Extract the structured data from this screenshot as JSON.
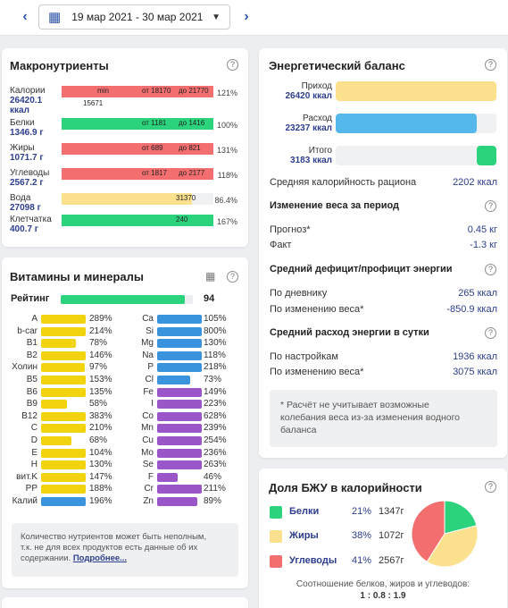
{
  "toolbar": {
    "date_range": "19 мар 2021 - 30 мар 2021"
  },
  "macro": {
    "title": "Макронутриенты",
    "rows": [
      {
        "name": "Калории",
        "value": "26420.1 ккал",
        "pct": "121%",
        "fill": 1.0,
        "color": "#f36f6f",
        "min_label": "min",
        "range_from": "от 18170",
        "range_to": "до 21770",
        "extra": "15671"
      },
      {
        "name": "Белки",
        "value": "1346.9 г",
        "pct": "100%",
        "fill": 1.0,
        "color": "#2bd47c",
        "range_from": "от 1181",
        "range_to": "до 1416"
      },
      {
        "name": "Жиры",
        "value": "1071.7 г",
        "pct": "131%",
        "fill": 1.0,
        "color": "#f36f6f",
        "range_from": "от 689",
        "range_to": "до 821"
      },
      {
        "name": "Углеводы",
        "value": "2567.2 г",
        "pct": "118%",
        "fill": 1.0,
        "color": "#f36f6f",
        "range_from": "от 1817",
        "range_to": "до 2177"
      },
      {
        "name": "Вода",
        "value": "27098 г",
        "pct": "86.4%",
        "fill": 0.86,
        "color": "#fbe08e",
        "range_to": "31370"
      },
      {
        "name": "Клетчатка",
        "value": "400.7 г",
        "pct": "167%",
        "fill": 1.0,
        "color": "#2bd47c",
        "range_to": "240"
      }
    ]
  },
  "vitamins": {
    "title": "Витамины и минералы",
    "rating_label": "Рейтинг",
    "rating_value": "94",
    "rating_fill": 0.94,
    "colors": {
      "yellow": "#f2d30f",
      "blue": "#3a93dd",
      "purple": "#9a55c9",
      "green": "#2bd47c"
    },
    "left": [
      {
        "name": "A",
        "pct": "289%",
        "fill": 1.0,
        "color": "yellow"
      },
      {
        "name": "b-car",
        "pct": "214%",
        "fill": 1.0,
        "color": "yellow"
      },
      {
        "name": "B1",
        "pct": "78%",
        "fill": 0.78,
        "color": "yellow"
      },
      {
        "name": "B2",
        "pct": "146%",
        "fill": 1.0,
        "color": "yellow"
      },
      {
        "name": "Холин",
        "pct": "97%",
        "fill": 0.97,
        "color": "yellow"
      },
      {
        "name": "B5",
        "pct": "153%",
        "fill": 1.0,
        "color": "yellow"
      },
      {
        "name": "B6",
        "pct": "135%",
        "fill": 1.0,
        "color": "yellow"
      },
      {
        "name": "B9",
        "pct": "58%",
        "fill": 0.58,
        "color": "yellow"
      },
      {
        "name": "B12",
        "pct": "383%",
        "fill": 1.0,
        "color": "yellow"
      },
      {
        "name": "C",
        "pct": "210%",
        "fill": 1.0,
        "color": "yellow"
      },
      {
        "name": "D",
        "pct": "68%",
        "fill": 0.68,
        "color": "yellow"
      },
      {
        "name": "E",
        "pct": "104%",
        "fill": 1.0,
        "color": "yellow"
      },
      {
        "name": "H",
        "pct": "130%",
        "fill": 1.0,
        "color": "yellow"
      },
      {
        "name": "вит.K",
        "pct": "147%",
        "fill": 1.0,
        "color": "yellow"
      },
      {
        "name": "PP",
        "pct": "188%",
        "fill": 1.0,
        "color": "yellow"
      },
      {
        "name": "Калий",
        "pct": "196%",
        "fill": 1.0,
        "color": "blue"
      }
    ],
    "right": [
      {
        "name": "Ca",
        "pct": "105%",
        "fill": 1.0,
        "color": "blue"
      },
      {
        "name": "Si",
        "pct": "800%",
        "fill": 1.0,
        "color": "blue"
      },
      {
        "name": "Mg",
        "pct": "130%",
        "fill": 1.0,
        "color": "blue"
      },
      {
        "name": "Na",
        "pct": "118%",
        "fill": 1.0,
        "color": "blue"
      },
      {
        "name": "P",
        "pct": "218%",
        "fill": 1.0,
        "color": "blue"
      },
      {
        "name": "Cl",
        "pct": "73%",
        "fill": 0.73,
        "color": "blue"
      },
      {
        "name": "Fe",
        "pct": "149%",
        "fill": 1.0,
        "color": "purple"
      },
      {
        "name": "I",
        "pct": "223%",
        "fill": 1.0,
        "color": "purple"
      },
      {
        "name": "Co",
        "pct": "628%",
        "fill": 1.0,
        "color": "purple"
      },
      {
        "name": "Mn",
        "pct": "239%",
        "fill": 1.0,
        "color": "purple"
      },
      {
        "name": "Cu",
        "pct": "254%",
        "fill": 1.0,
        "color": "purple"
      },
      {
        "name": "Mo",
        "pct": "236%",
        "fill": 1.0,
        "color": "purple"
      },
      {
        "name": "Se",
        "pct": "263%",
        "fill": 1.0,
        "color": "purple"
      },
      {
        "name": "F",
        "pct": "46%",
        "fill": 0.46,
        "color": "purple"
      },
      {
        "name": "Cr",
        "pct": "211%",
        "fill": 1.0,
        "color": "purple"
      },
      {
        "name": "Zn",
        "pct": "89%",
        "fill": 0.89,
        "color": "purple"
      }
    ],
    "note_line1": "Количество нутриентов может быть неполным,",
    "note_line2": "т.к. не для всех продуктов есть данные об их",
    "note_line3": "содержании.",
    "more_link": "Подробнее..."
  },
  "energy": {
    "title": "Энергетический баланс",
    "rows": [
      {
        "name": "Приход",
        "value": "26420 ккал",
        "fill": 1.0,
        "color": "#fbe08e"
      },
      {
        "name": "Расход",
        "value": "23237 ккал",
        "fill": 0.88,
        "color": "#56b7ea"
      },
      {
        "name": "Итого",
        "value": "3183 ккал",
        "fill": 0.12,
        "color": "#2bd47c"
      }
    ],
    "avg_label": "Средняя калорийность рациона",
    "avg_value": "2202 ккал",
    "weight_title": "Изменение веса за период",
    "forecast_label": "Прогноз*",
    "forecast_value": "0.45 кг",
    "fact_label": "Факт",
    "fact_value": "-1.3 кг",
    "deficit_title": "Средний дефицит/профицит энергии",
    "by_diary_label": "По дневнику",
    "by_diary_value": "265 ккал",
    "by_weight_label": "По изменению веса*",
    "by_weight_value": "-850.9 ккал",
    "expense_title": "Средний расход энергии в сутки",
    "by_settings_label": "По настройкам",
    "by_settings_value": "1936 ккал",
    "by_weight2_label": "По изменению веса*",
    "by_weight2_value": "3075 ккал",
    "note_line1": "* Расчёт не учитывает возможные",
    "note_line2": "колебания веса из-за изменения водного",
    "note_line3": "баланса"
  },
  "bzu": {
    "title": "Доля БЖУ в калорийности",
    "rows": [
      {
        "name": "Белки",
        "pct": "21%",
        "grams": "1347г",
        "color": "#2bd47c",
        "share": 21
      },
      {
        "name": "Жиры",
        "pct": "38%",
        "grams": "1072г",
        "color": "#fbe08e",
        "share": 38
      },
      {
        "name": "Углеводы",
        "pct": "41%",
        "grams": "2567г",
        "color": "#f36f6f",
        "share": 41
      }
    ],
    "ratio_label": "Соотношение белков, жиров и углеводов:",
    "ratio_value": "1 : 0.8 : 1.9"
  }
}
